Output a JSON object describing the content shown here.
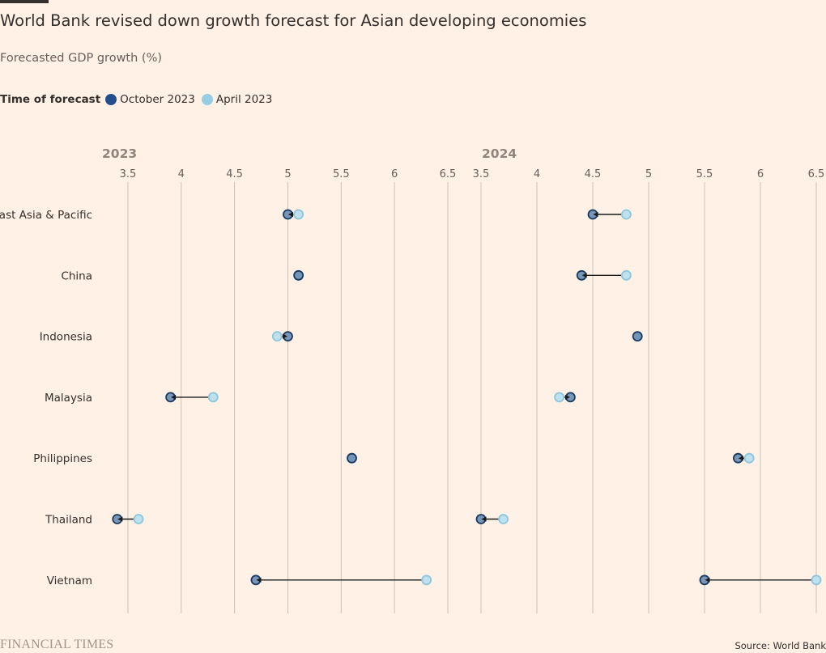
{
  "title": "World Bank revised down growth forecast for Asian developing economies",
  "subtitle": "Forecasted GDP growth (%)",
  "legend": {
    "title": "Time of forecast",
    "items": [
      {
        "label": "October 2023",
        "color": "#22508f"
      },
      {
        "label": "April 2023",
        "color": "#96cce4"
      }
    ]
  },
  "source": "Source: World Bank",
  "brand": "FINANCIAL TIMES",
  "colors": {
    "background": "#fff1e5",
    "october": "#6e8fb4",
    "october_stroke": "#1b3a5f",
    "april": "#bfe0ee",
    "april_stroke": "#8ec6dc",
    "grid": "#ccc1b7",
    "text": "#33302e"
  },
  "chart_data": {
    "type": "scatter",
    "subtype": "dumbbell",
    "categories": [
      "East Asia & Pacific",
      "China",
      "Indonesia",
      "Malaysia",
      "Philippines",
      "Thailand",
      "Vietnam"
    ],
    "panels": [
      {
        "title": "2023",
        "xlim": [
          3.25,
          6.5
        ],
        "ticks": [
          3.5,
          4,
          4.5,
          5,
          5.5,
          6,
          6.5
        ],
        "tick_labels": [
          "3.5",
          "4",
          "4.5",
          "5",
          "5.5",
          "6",
          "6.5"
        ],
        "series": [
          {
            "name": "October 2023",
            "values": [
              5.0,
              5.1,
              5.0,
              3.9,
              5.6,
              3.4,
              4.7
            ]
          },
          {
            "name": "April 2023",
            "values": [
              5.1,
              5.1,
              4.9,
              4.3,
              5.6,
              3.6,
              6.3
            ]
          }
        ]
      },
      {
        "title": "2024",
        "xlim": [
          3.5,
          6.5
        ],
        "ticks": [
          3.5,
          4,
          4.5,
          5,
          5.5,
          6,
          6.5
        ],
        "tick_labels": [
          "3.5",
          "4",
          "4.5",
          "5",
          "5.5",
          "6",
          "6.5"
        ],
        "series": [
          {
            "name": "October 2023",
            "values": [
              4.5,
              4.4,
              4.9,
              4.3,
              5.8,
              3.5,
              5.5
            ]
          },
          {
            "name": "April 2023",
            "values": [
              4.8,
              4.8,
              4.9,
              4.2,
              5.9,
              3.7,
              6.5
            ]
          }
        ]
      }
    ]
  }
}
